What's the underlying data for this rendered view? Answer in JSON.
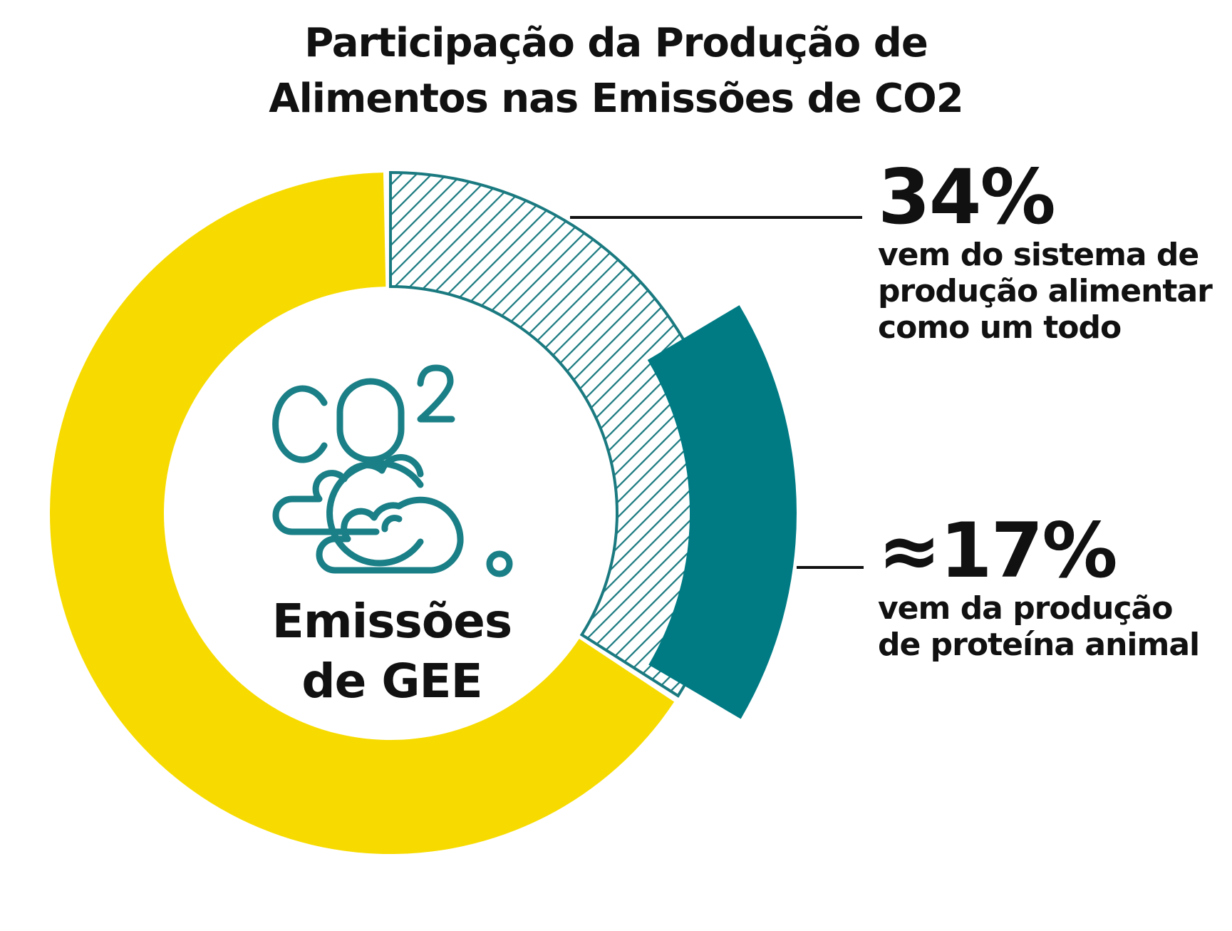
{
  "chart_data": {
    "type": "pie",
    "variant": "donut",
    "title_lines": [
      "Participação da Produção de",
      "Alimentos nas Emissões de CO2"
    ],
    "center_icon": "co2-cloud-icon",
    "center_icon_text": "CO2",
    "center_label": [
      "Emissões",
      "de GEE"
    ],
    "segments": [
      {
        "value": 34,
        "label": "34%",
        "description": [
          "vem do sistema de",
          "produção alimentar",
          "como um todo"
        ],
        "style": "hatched",
        "color": "#1a7a80"
      },
      {
        "value": 17,
        "label": "≈17%",
        "description": [
          "vem da produção",
          "de proteína animal"
        ],
        "style": "solid",
        "color": "#007b84",
        "nested_in": 0
      },
      {
        "value": 66,
        "label": "",
        "description": [],
        "style": "solid",
        "color": "#f7db00"
      }
    ],
    "start_angle": "12-o'clock",
    "direction": "clockwise"
  },
  "colors": {
    "yellow": "#f7db00",
    "teal": "#007b84",
    "hatch": "#1a7a80",
    "text": "#111111"
  }
}
